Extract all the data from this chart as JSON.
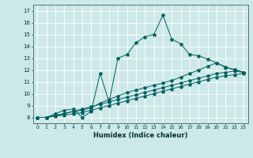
{
  "xlabel": "Humidex (Indice chaleur)",
  "bg_color": "#cde8e8",
  "grid_color": "#dfffff",
  "line_color": "#006060",
  "xlim": [
    -0.5,
    23.5
  ],
  "ylim": [
    7.5,
    17.5
  ],
  "xticks": [
    0,
    1,
    2,
    3,
    4,
    5,
    6,
    7,
    8,
    9,
    10,
    11,
    12,
    13,
    14,
    15,
    16,
    17,
    18,
    19,
    20,
    21,
    22,
    23
  ],
  "yticks": [
    8,
    9,
    10,
    11,
    12,
    13,
    14,
    15,
    16,
    17
  ],
  "line1_x": [
    0,
    1,
    2,
    3,
    4,
    5,
    6,
    7,
    8,
    9,
    10,
    11,
    12,
    13,
    14,
    15,
    16,
    17,
    18,
    19,
    20,
    21,
    22,
    23
  ],
  "line1_y": [
    8.0,
    8.0,
    8.3,
    8.6,
    8.7,
    8.0,
    8.5,
    11.7,
    9.3,
    13.0,
    13.3,
    14.3,
    14.8,
    15.0,
    16.6,
    14.6,
    14.2,
    13.3,
    13.2,
    12.9,
    12.6,
    12.2,
    12.05,
    11.8
  ],
  "line2_x": [
    0,
    1,
    4,
    5,
    6,
    7,
    8,
    9,
    10,
    11,
    12,
    13,
    14,
    15,
    16,
    17,
    18,
    19,
    20,
    21,
    22,
    23
  ],
  "line2_y": [
    8.0,
    8.0,
    8.5,
    8.6,
    8.8,
    9.2,
    9.5,
    9.8,
    10.1,
    10.3,
    10.5,
    10.7,
    10.9,
    11.1,
    11.4,
    11.7,
    12.0,
    12.3,
    12.6,
    12.25,
    12.0,
    11.8
  ],
  "line3_x": [
    0,
    1,
    2,
    3,
    4,
    5,
    6,
    7,
    8,
    9,
    10,
    11,
    12,
    13,
    14,
    15,
    16,
    17,
    18,
    19,
    20,
    21,
    22,
    23
  ],
  "line3_y": [
    8.0,
    8.0,
    8.1,
    8.3,
    8.5,
    8.7,
    8.9,
    9.1,
    9.3,
    9.5,
    9.7,
    9.9,
    10.1,
    10.3,
    10.5,
    10.7,
    10.9,
    11.1,
    11.3,
    11.5,
    11.7,
    11.8,
    11.9,
    11.8
  ],
  "line4_x": [
    0,
    1,
    2,
    3,
    4,
    5,
    6,
    7,
    8,
    9,
    10,
    11,
    12,
    13,
    14,
    15,
    16,
    17,
    18,
    19,
    20,
    21,
    22,
    23
  ],
  "line4_y": [
    8.0,
    8.0,
    8.1,
    8.2,
    8.3,
    8.4,
    8.6,
    8.8,
    9.0,
    9.2,
    9.4,
    9.6,
    9.8,
    10.0,
    10.2,
    10.4,
    10.6,
    10.8,
    11.0,
    11.2,
    11.4,
    11.5,
    11.6,
    11.7
  ]
}
